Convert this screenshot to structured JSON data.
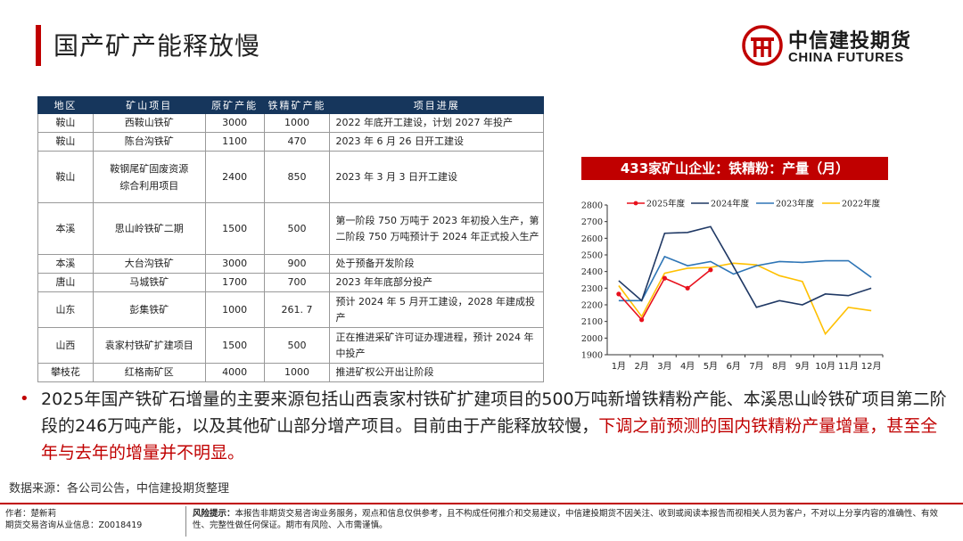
{
  "header": {
    "title": "国产矿产能释放慢",
    "logo_cn": "中信建投期货",
    "logo_en": "CHINA FUTURES"
  },
  "table": {
    "headers": [
      "地区",
      "矿山项目",
      "原矿产能",
      "铁精矿产能",
      "项目进展"
    ],
    "rows": [
      {
        "region": "鞍山",
        "project": "西鞍山铁矿",
        "ore": "3000",
        "conc": "1000",
        "progress": "2022 年底开工建设，计划 2027 年投产"
      },
      {
        "region": "鞍山",
        "project": "陈台沟铁矿",
        "ore": "1100",
        "conc": "470",
        "progress": "2023 年 6 月 26 日开工建设"
      },
      {
        "region": "鞍山",
        "project": "鞍钢尾矿固废资源综合利用项目",
        "ore": "2400",
        "conc": "850",
        "progress": "2023 年 3 月 3 日开工建设"
      },
      {
        "region": "本溪",
        "project": "思山岭铁矿二期",
        "ore": "1500",
        "conc": "500",
        "progress": "第一阶段 750 万吨于 2023 年初投入生产，第二阶段 750 万吨预计于 2024 年正式投入生产"
      },
      {
        "region": "本溪",
        "project": "大台沟铁矿",
        "ore": "3000",
        "conc": "900",
        "progress": "处于预备开发阶段"
      },
      {
        "region": "唐山",
        "project": "马城铁矿",
        "ore": "1700",
        "conc": "700",
        "progress": "2023 年年底部分投产"
      },
      {
        "region": "山东",
        "project": "彭集铁矿",
        "ore": "1000",
        "conc": "261. 7",
        "progress": "预计 2024 年 5 月开工建设，2028 年建成投产"
      },
      {
        "region": "山西",
        "project": "袁家村铁矿扩建项目",
        "ore": "1500",
        "conc": "500",
        "progress": "正在推进采矿许可证办理进程，预计 2024 年中投产"
      },
      {
        "region": "攀枝花",
        "project": "红格南矿区",
        "ore": "4000",
        "conc": "1000",
        "progress": "推进矿权公开出让阶段"
      }
    ]
  },
  "chart_data": {
    "type": "line",
    "title": "433家矿山企业：铁精粉：产量（月）",
    "categories": [
      "1月",
      "2月",
      "3月",
      "4月",
      "5月",
      "6月",
      "7月",
      "8月",
      "9月",
      "10月",
      "11月",
      "12月"
    ],
    "ylim": [
      1900,
      2800
    ],
    "yticks": [
      1900,
      2000,
      2100,
      2200,
      2300,
      2400,
      2500,
      2600,
      2700,
      2800
    ],
    "series": [
      {
        "name": "2025年度",
        "color": "#e8101c",
        "markers": true,
        "values": [
          2265,
          2110,
          2360,
          2300,
          2410,
          null,
          null,
          null,
          null,
          null,
          null,
          null
        ]
      },
      {
        "name": "2024年度",
        "color": "#1f3864",
        "markers": false,
        "values": [
          2345,
          2225,
          2630,
          2635,
          2670,
          2430,
          2185,
          2225,
          2200,
          2265,
          2255,
          2300
        ]
      },
      {
        "name": "2023年度",
        "color": "#2e75b6",
        "markers": false,
        "values": [
          2225,
          2225,
          2490,
          2435,
          2460,
          2385,
          2435,
          2460,
          2455,
          2465,
          2465,
          2365
        ]
      },
      {
        "name": "2022年度",
        "color": "#ffc000",
        "markers": false,
        "values": [
          2315,
          2130,
          2390,
          2420,
          2425,
          2450,
          2440,
          2375,
          2340,
          2025,
          2185,
          2165
        ]
      }
    ]
  },
  "bullet": {
    "text_normal": "2025年国产铁矿石增量的主要来源包括山西袁家村铁矿扩建项目的500万吨新增铁精粉产能、本溪思山岭铁矿项目第二阶段的246万吨产能，以及其他矿山部分增产项目。目前由于产能释放较慢，",
    "text_red": "下调之前预测的国内铁精粉产量增量，甚至全年与去年的增量并不明显。"
  },
  "source": "数据来源：各公司公告，中信建投期货整理",
  "footer": {
    "author": "作者：楚新莉",
    "license": "期货交易咨询从业信息：Z0018419",
    "risk_label": "风险提示：",
    "risk_text": "本报告非期货交易咨询业务服务，观点和信息仅供参考，且不构成任何推介和交易建议，中信建投期货不因关注、收到或阅读本报告而视相关人员为客户，不对以上分享内容的准确性、有效性、完整性做任何保证。期市有风险、入市需谨慎。"
  },
  "colors": {
    "accent": "#c00000",
    "table_header": "#16365c"
  }
}
